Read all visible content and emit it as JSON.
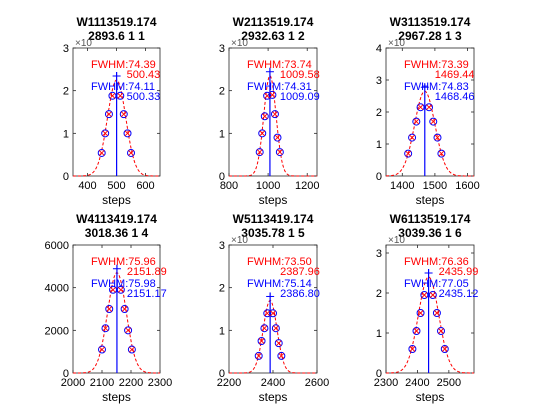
{
  "chart_data": [
    {
      "type": "line",
      "title": "W1113519.174",
      "subtitle": "2893.6 1 1",
      "xlabel": "steps",
      "ylabel": "",
      "xlim": [
        350,
        650
      ],
      "ylim": [
        0,
        30000
      ],
      "xticks": [
        400,
        500,
        600
      ],
      "xtick_labels": [
        "400",
        "500",
        "600"
      ],
      "yticks": [
        0,
        10000,
        20000,
        30000
      ],
      "ytick_labels": [
        "0",
        "1",
        "2",
        "3"
      ],
      "exponent": "×10",
      "center": 500.4,
      "fwhm": 74.39,
      "peak": 22500,
      "points": [
        [
          461,
          10000
        ],
        [
          474,
          14500
        ],
        [
          486,
          18800
        ],
        [
          513,
          18800
        ],
        [
          525,
          14500
        ],
        [
          538,
          10000
        ],
        [
          550,
          5400
        ],
        [
          449,
          5400
        ]
      ],
      "labels": {
        "red_fwhm": "FWHM:74.39",
        "red_center": "500.43",
        "blue_fwhm": "FWHM:74.11",
        "blue_center": "500.33"
      }
    },
    {
      "type": "line",
      "title": "W2113519.174",
      "subtitle": "2932.63 1 2",
      "xlabel": "steps",
      "ylabel": "",
      "xlim": [
        800,
        1250
      ],
      "ylim": [
        0,
        30000
      ],
      "xticks": [
        800,
        1000,
        1200
      ],
      "xtick_labels": [
        "800",
        "1000",
        "1200"
      ],
      "yticks": [
        0,
        10000,
        20000,
        30000
      ],
      "ytick_labels": [
        "0",
        "1",
        "2",
        "3"
      ],
      "exponent": "×10",
      "center": 1009.3,
      "fwhm": 73.74,
      "peak": 23500,
      "points": [
        [
          970,
          10000
        ],
        [
          983,
          14000
        ],
        [
          995,
          18800
        ],
        [
          1022,
          19000
        ],
        [
          1035,
          14500
        ],
        [
          1048,
          9000
        ],
        [
          1060,
          5600
        ],
        [
          957,
          5600
        ]
      ],
      "labels": {
        "red_fwhm": "FWHM:73.74",
        "red_center": "1009.58",
        "blue_fwhm": "FWHM:74.31",
        "blue_center": "1009.09"
      }
    },
    {
      "type": "line",
      "title": "W3113519.174",
      "subtitle": "2967.28 1 3",
      "xlabel": "steps",
      "ylabel": "",
      "xlim": [
        1350,
        1620
      ],
      "ylim": [
        0,
        40000
      ],
      "xticks": [
        1400,
        1500,
        1600
      ],
      "xtick_labels": [
        "1400",
        "1500",
        "1600"
      ],
      "yticks": [
        0,
        10000,
        20000,
        30000,
        40000
      ],
      "ytick_labels": [
        "0",
        "1",
        "2",
        "3",
        "4"
      ],
      "exponent": "×10",
      "center": 1469,
      "fwhm": 73.39,
      "peak": 26500,
      "points": [
        [
          1430,
          12000
        ],
        [
          1443,
          17000
        ],
        [
          1456,
          21500
        ],
        [
          1482,
          21500
        ],
        [
          1495,
          17000
        ],
        [
          1508,
          12000
        ],
        [
          1520,
          7000
        ],
        [
          1418,
          7000
        ]
      ],
      "labels": {
        "red_fwhm": "FWHM:73.39",
        "red_center": "1469.44",
        "blue_fwhm": "FWHM:74.83",
        "blue_center": "1468.46"
      }
    },
    {
      "type": "line",
      "title": "W4113419.174",
      "subtitle": "3018.36 1 4",
      "xlabel": "steps",
      "ylabel": "",
      "xlim": [
        2000,
        2300
      ],
      "ylim": [
        0,
        6000
      ],
      "xticks": [
        2000,
        2100,
        2200,
        2300
      ],
      "xtick_labels": [
        "2000",
        "2100",
        "2200",
        "2300"
      ],
      "yticks": [
        0,
        2000,
        4000,
        6000
      ],
      "ytick_labels": [
        "0",
        "2000",
        "4000",
        "6000"
      ],
      "exponent": "",
      "center": 2151.5,
      "fwhm": 75.96,
      "peak": 4700,
      "points": [
        [
          2112,
          2100
        ],
        [
          2125,
          3000
        ],
        [
          2138,
          3900
        ],
        [
          2165,
          3900
        ],
        [
          2178,
          3000
        ],
        [
          2190,
          2000
        ],
        [
          2203,
          1100
        ],
        [
          2100,
          1100
        ]
      ],
      "labels": {
        "red_fwhm": "FWHM:75.96",
        "red_center": "2151.89",
        "blue_fwhm": "FWHM:75.98",
        "blue_center": "2151.17"
      }
    },
    {
      "type": "line",
      "title": "W5113419.174",
      "subtitle": "3035.78 1 5",
      "xlabel": "steps",
      "ylabel": "",
      "xlim": [
        2200,
        2600
      ],
      "ylim": [
        0,
        30000
      ],
      "xticks": [
        2200,
        2400,
        2600
      ],
      "xtick_labels": [
        "2200",
        "2400",
        "2600"
      ],
      "yticks": [
        0,
        10000,
        20000,
        30000
      ],
      "ytick_labels": [
        "0",
        "1",
        "2",
        "3"
      ],
      "exponent": "×10",
      "center": 2387,
      "fwhm": 73.5,
      "peak": 17000,
      "points": [
        [
          2348,
          7500
        ],
        [
          2361,
          10500
        ],
        [
          2374,
          14000
        ],
        [
          2400,
          14000
        ],
        [
          2413,
          10500
        ],
        [
          2426,
          7000
        ],
        [
          2438,
          4000
        ],
        [
          2335,
          4000
        ]
      ],
      "labels": {
        "red_fwhm": "FWHM:73.50",
        "red_center": "2387.96",
        "blue_fwhm": "FWHM:75.14",
        "blue_center": "2386.80"
      }
    },
    {
      "type": "line",
      "title": "W6113519.174",
      "subtitle": "3039.36 1 6",
      "xlabel": "steps",
      "ylabel": "",
      "xlim": [
        2300,
        2580
      ],
      "ylim": [
        0,
        32000
      ],
      "xticks": [
        2300,
        2400,
        2500
      ],
      "xtick_labels": [
        "2300",
        "2400",
        "2500"
      ],
      "yticks": [
        0,
        10000,
        20000,
        30000
      ],
      "ytick_labels": [
        "0",
        "1",
        "2",
        "3"
      ],
      "exponent": "×10",
      "center": 2435.5,
      "fwhm": 76.36,
      "peak": 24000,
      "points": [
        [
          2397,
          10500
        ],
        [
          2410,
          15000
        ],
        [
          2422,
          19500
        ],
        [
          2449,
          19500
        ],
        [
          2462,
          15000
        ],
        [
          2475,
          10500
        ],
        [
          2487,
          6000
        ],
        [
          2384,
          6000
        ]
      ],
      "labels": {
        "red_fwhm": "FWHM:76.36",
        "red_center": "2435.99",
        "blue_fwhm": "FWHM:77.05",
        "blue_center": "2435.12"
      }
    }
  ],
  "colors": {
    "fit": "#ff0000",
    "marker": "#0000ff",
    "center": "#0000ff",
    "axis": "#262626"
  }
}
